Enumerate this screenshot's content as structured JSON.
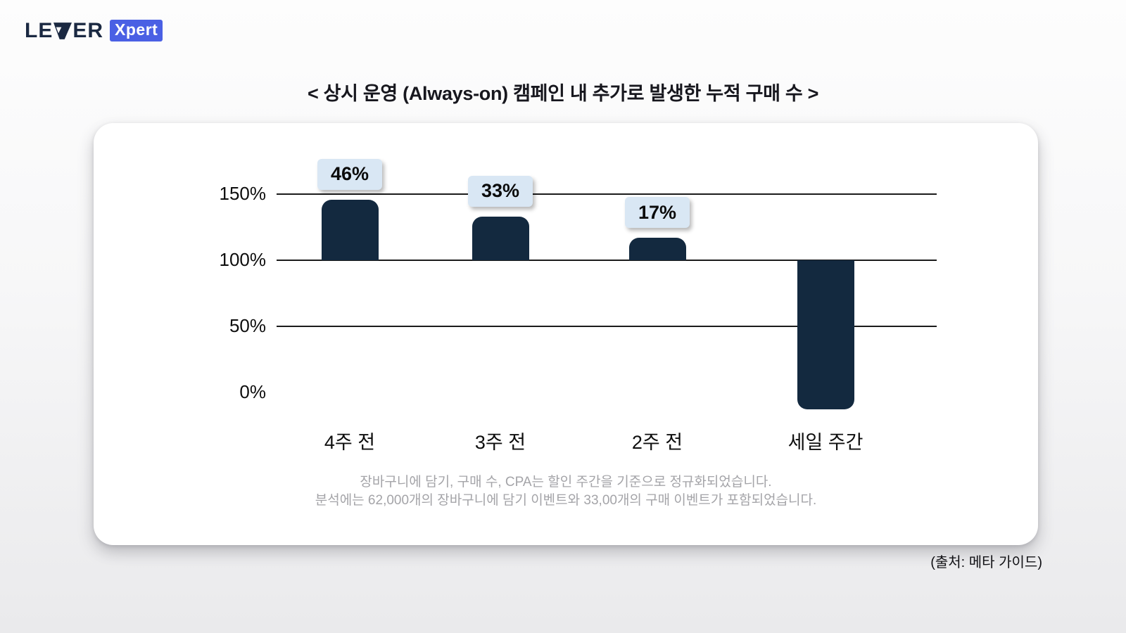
{
  "logo": {
    "text_left": "LE",
    "text_right": "ER",
    "full_text": "LEVER",
    "badge": "Xpert"
  },
  "title": "< 상시 운영 (Always-on) 캠페인 내 추가로 발생한 누적 구매 수 >",
  "footnote": {
    "line1": "장바구니에 담기, 구매 수, CPA는 할인 주간을 기준으로 정규화되었습니다.",
    "line2": "분석에는 62,000개의 장바구니에 담기 이벤트와 33,00개의 구매 이벤트가 포함되었습니다."
  },
  "source": "(출처: 메타 가이드)",
  "colors": {
    "bar": "#13293F",
    "annotation_bg": "#D9E7F4",
    "gridline": "#1B1B1B",
    "logo_text": "#1B2942",
    "logo_badge_bg": "#4A60E4",
    "card_bg": "#FFFFFF"
  },
  "chart_data": {
    "type": "bar",
    "title": "< 상시 운영 (Always-on) 캠페인 내 추가로 발생한 누적 구매 수 >",
    "categories": [
      "4주 전",
      "3주 전",
      "2주 전",
      "세일 주간"
    ],
    "baseline": 100,
    "unit": "%",
    "bars": [
      {
        "category": "4주 전",
        "label": "46%",
        "value": 46,
        "from": 100,
        "to": 146,
        "direction": "up"
      },
      {
        "category": "3주 전",
        "label": "33%",
        "value": 33,
        "from": 100,
        "to": 133,
        "direction": "up"
      },
      {
        "category": "2주 전",
        "label": "17%",
        "value": 17,
        "from": 100,
        "to": 117,
        "direction": "up"
      },
      {
        "category": "세일 주간",
        "label": null,
        "value": null,
        "from": 100,
        "to": -13,
        "direction": "down"
      }
    ],
    "yticks": [
      {
        "label": "150%",
        "value": 150,
        "gridline": true
      },
      {
        "label": "100%",
        "value": 100,
        "gridline": true
      },
      {
        "label": "50%",
        "value": 50,
        "gridline": true
      },
      {
        "label": "0%",
        "value": 0,
        "gridline": false
      }
    ],
    "ylim": [
      -15,
      160
    ],
    "grid": "horizontal-only",
    "legend": null
  }
}
